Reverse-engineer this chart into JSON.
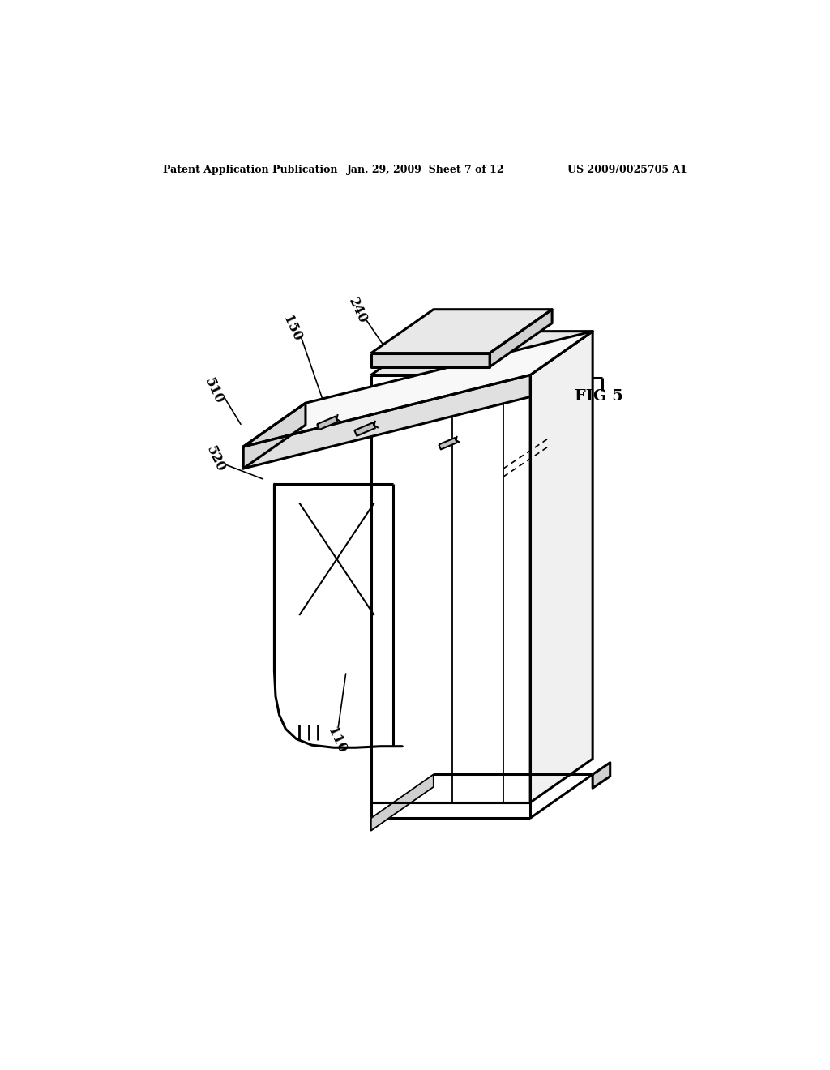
{
  "background_color": "#ffffff",
  "line_color": "#000000",
  "header_left": "Patent Application Publication",
  "header_center": "Jan. 29, 2009  Sheet 7 of 12",
  "header_right": "US 2009/0025705 A1",
  "fig_label": "FIG 5",
  "lw_main": 2.2,
  "lw_thin": 1.3,
  "lw_label": 1.2
}
